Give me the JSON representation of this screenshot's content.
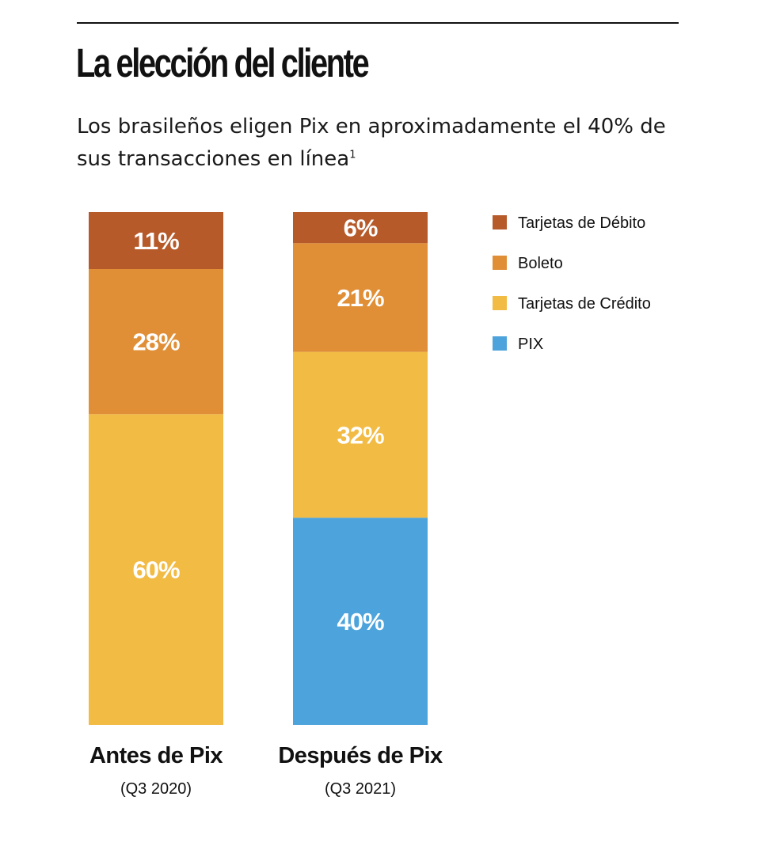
{
  "header": {
    "title": "La elección del cliente",
    "subtitle": "Los brasileños eligen Pix en aproximadamente el 40% de sus transacciones en línea",
    "footnote_mark": "1"
  },
  "chart_data": {
    "type": "bar",
    "stacked": true,
    "categories": [
      "Antes de Pix",
      "Después de Pix"
    ],
    "category_sublabels": [
      "(Q3 2020)",
      "(Q3 2021)"
    ],
    "series": [
      {
        "name": "PIX",
        "color": "#4DA3DB",
        "values": [
          0,
          40
        ],
        "labels": [
          "",
          "40%"
        ]
      },
      {
        "name": "Tarjetas de Crédito",
        "color": "#F2BB44",
        "values": [
          60,
          32
        ],
        "labels": [
          "60%",
          "32%"
        ]
      },
      {
        "name": "Boleto",
        "color": "#E08F37",
        "values": [
          28,
          21
        ],
        "labels": [
          "28%",
          "21%"
        ]
      },
      {
        "name": "Tarjetas de Débito",
        "color": "#B65A2A",
        "values": [
          11,
          6
        ],
        "labels": [
          "11%",
          "6%"
        ]
      }
    ],
    "legend_order": [
      "Tarjetas de Débito",
      "Boleto",
      "Tarjetas de Crédito",
      "PIX"
    ],
    "legend_position": "top-right",
    "ylim": [
      0,
      100
    ],
    "grid": false,
    "axes_visible": false
  }
}
